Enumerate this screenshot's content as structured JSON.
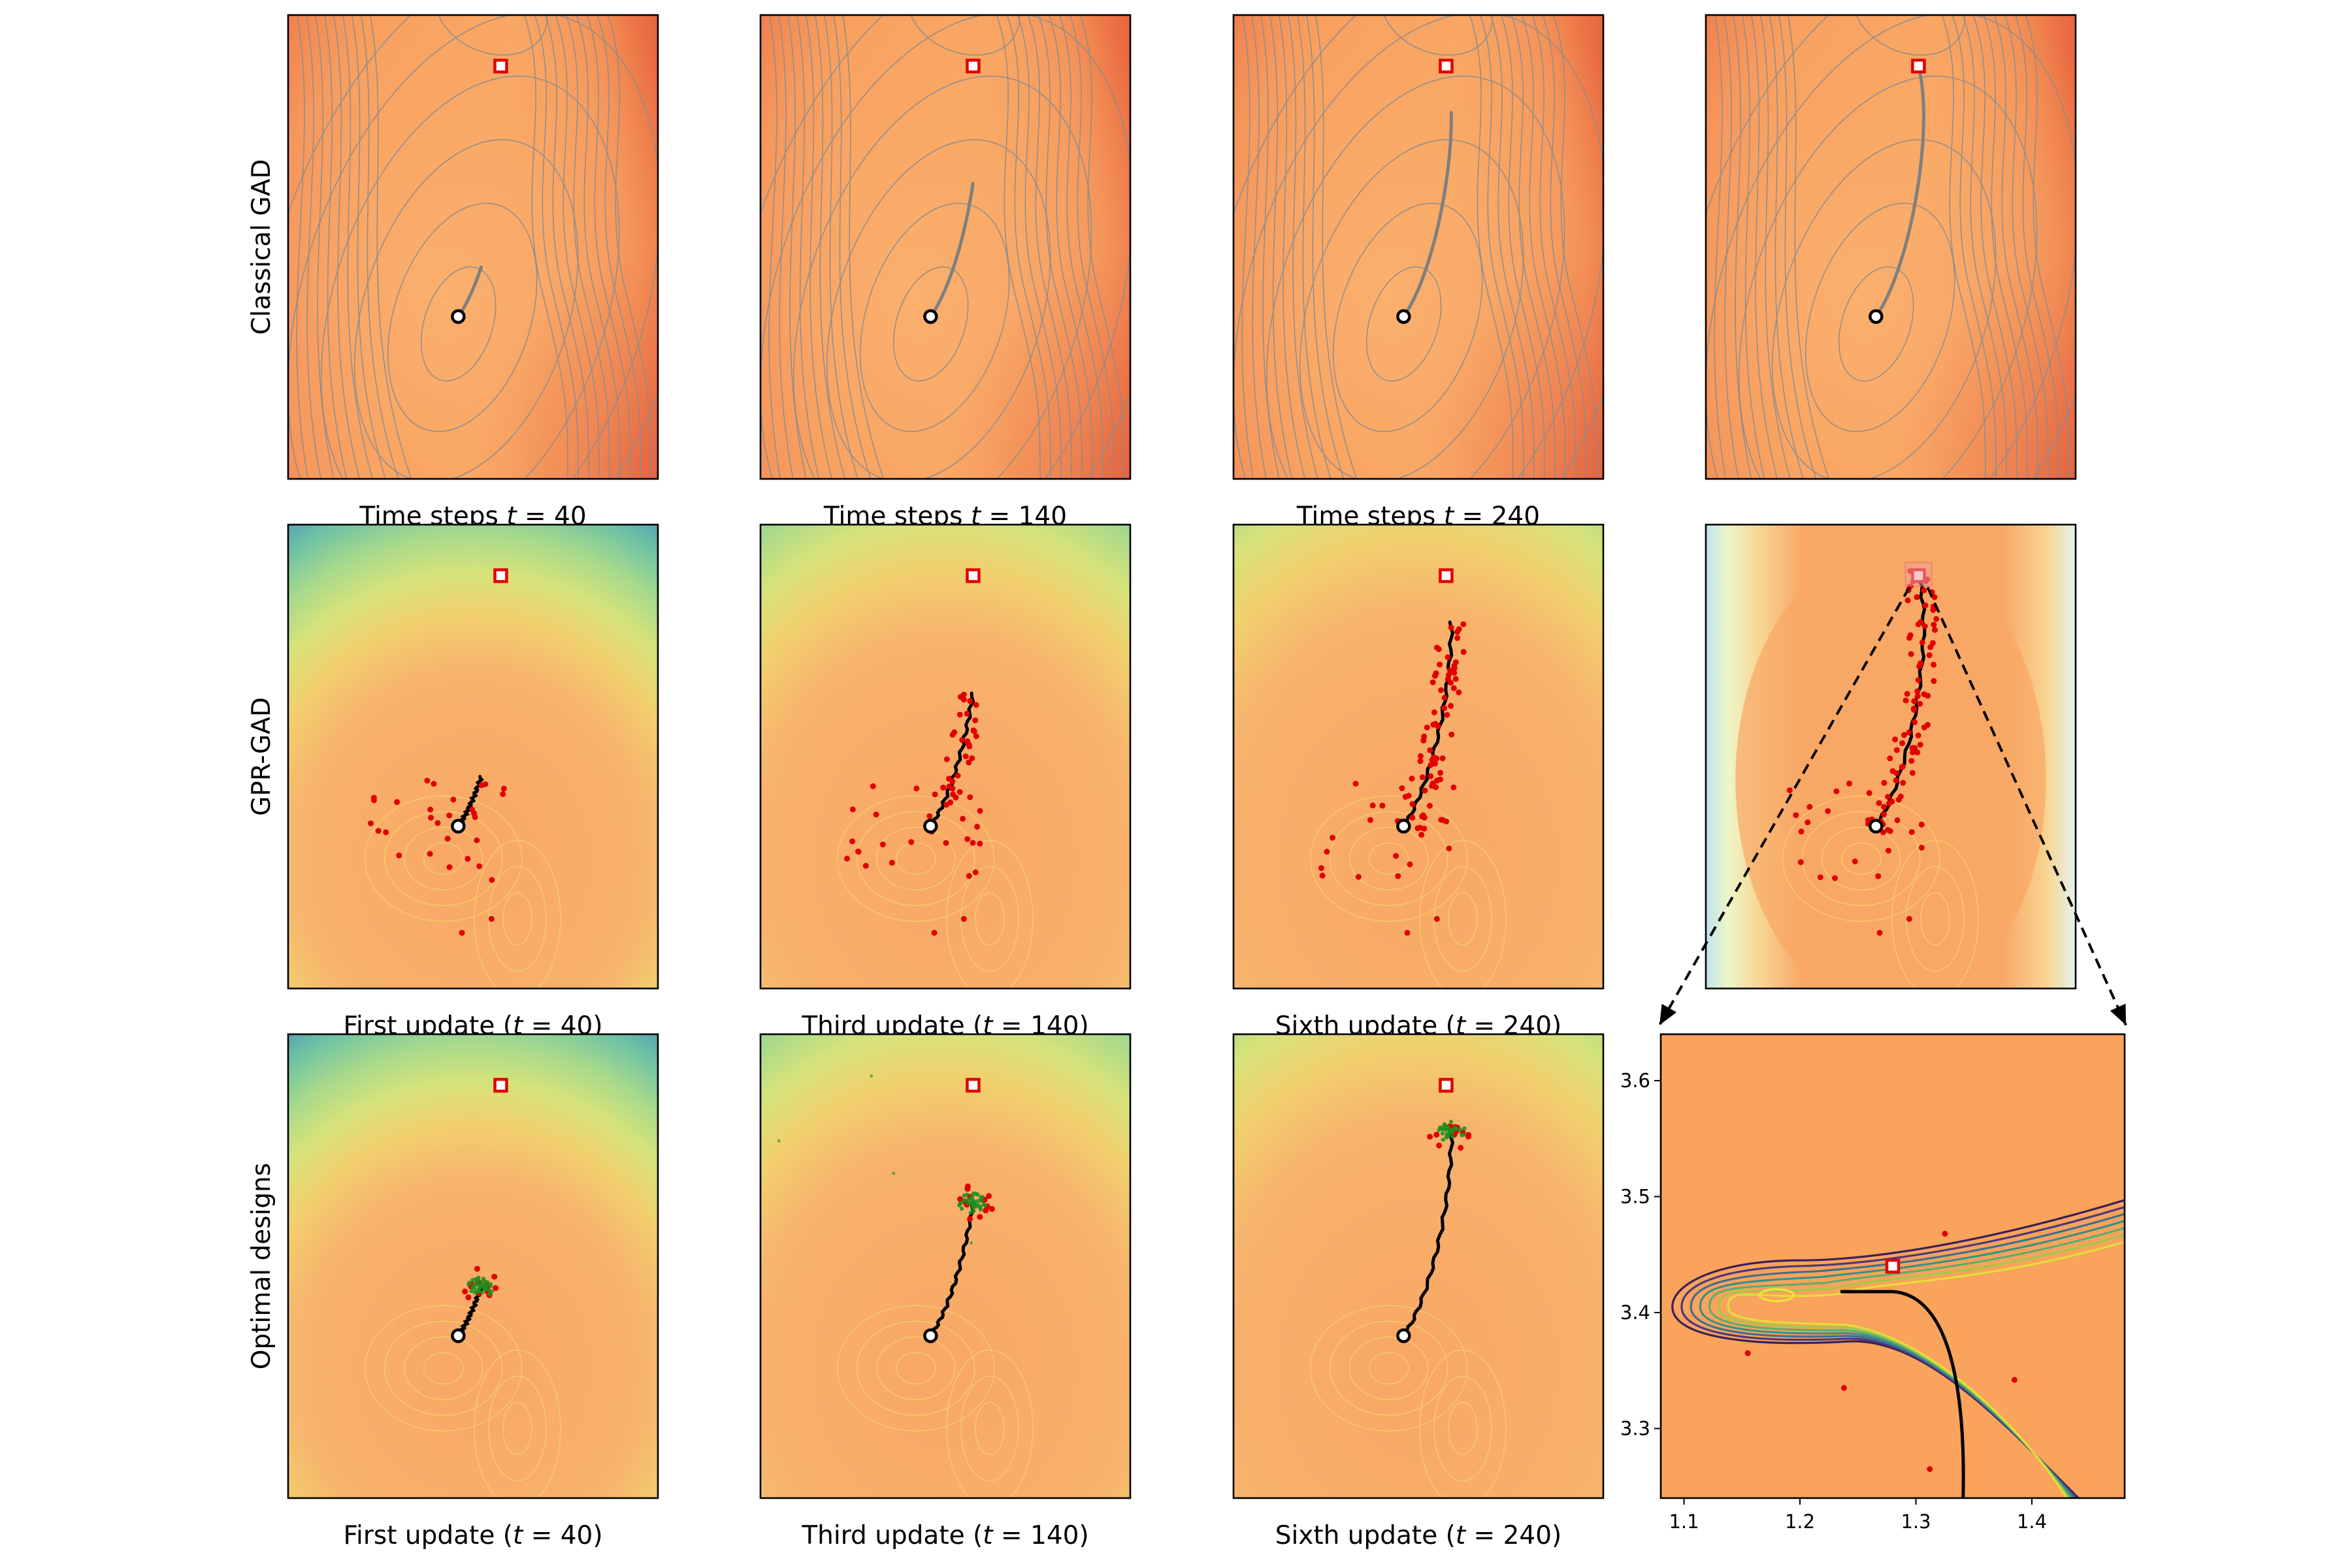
{
  "chart_data": {
    "type": "contour-grid",
    "row_labels": [
      "Classical GAD",
      "GPR-GAD",
      "Optimal designs"
    ],
    "rows": [
      {
        "name": "Classical GAD",
        "surface": "true potential",
        "panels": [
          {
            "caption": "Time steps $t = 40$",
            "caption_text": "Time steps ",
            "caption_var": "t",
            "caption_tail": " = 40",
            "progress": 0.25
          },
          {
            "caption": "Time steps $t = 140$",
            "caption_text": "Time steps ",
            "caption_var": "t",
            "caption_tail": " = 140",
            "progress": 0.55
          },
          {
            "caption": "Time steps $t = 240$",
            "caption_text": "Time steps ",
            "caption_var": "t",
            "caption_tail": " = 240",
            "progress": 0.8
          },
          {
            "caption": "",
            "caption_text": "",
            "caption_var": "",
            "caption_tail": "",
            "progress": 1.0
          }
        ]
      },
      {
        "name": "GPR-GAD",
        "surface": "GPR surrogate",
        "panels": [
          {
            "caption": "First update ($t = 40$)",
            "caption_text": "First update (",
            "caption_var": "t",
            "caption_tail": " = 40)",
            "progress": 0.25,
            "n_points": 30
          },
          {
            "caption": "Third update ($t = 140$)",
            "caption_text": "Third update (",
            "caption_var": "t",
            "caption_tail": " = 140)",
            "progress": 0.55,
            "n_points": 60
          },
          {
            "caption": "Sixth update ($t = 240$)",
            "caption_text": "Sixth update (",
            "caption_var": "t",
            "caption_tail": " = 240)",
            "progress": 0.8,
            "n_points": 90
          },
          {
            "caption": "",
            "caption_text": "",
            "caption_var": "",
            "caption_tail": "",
            "progress": 1.0,
            "n_points": 110
          }
        ]
      },
      {
        "name": "Optimal designs",
        "surface": "GPR surrogate with design points",
        "panels": [
          {
            "caption": "First update ($t = 40$)",
            "caption_text": "First update (",
            "caption_var": "t",
            "caption_tail": " = 40)",
            "progress": 0.25
          },
          {
            "caption": "Third update ($t = 140$)",
            "caption_text": "Third update (",
            "caption_var": "t",
            "caption_tail": " = 140)",
            "progress": 0.55
          },
          {
            "caption": "Sixth update ($t = 240$)",
            "caption_text": "Sixth update (",
            "caption_var": "t",
            "caption_tail": " = 240)",
            "progress": 0.8
          }
        ]
      }
    ],
    "inset": {
      "type": "contour-zoom",
      "xlim": [
        1.08,
        1.48
      ],
      "ylim": [
        3.24,
        3.64
      ],
      "xticks": [
        "1.1",
        "1.2",
        "1.3",
        "1.4"
      ],
      "xtick_values": [
        1.1,
        1.2,
        1.3,
        1.4
      ],
      "yticks": [
        "3.3",
        "3.4",
        "3.5",
        "3.6"
      ],
      "ytick_values": [
        3.3,
        3.4,
        3.5,
        3.6
      ],
      "saddle_estimate": [
        1.28,
        3.44
      ],
      "path_end": [
        1.235,
        3.418
      ],
      "red_points": [
        [
          1.155,
          3.365
        ],
        [
          1.238,
          3.335
        ],
        [
          1.325,
          3.468
        ],
        [
          1.385,
          3.342
        ],
        [
          1.312,
          3.265
        ]
      ]
    },
    "markers": {
      "start": "open black circle",
      "saddle": "red square"
    },
    "colors": {
      "path_classical": "#7f7f7f",
      "path_gpr": "#000000",
      "samples": "#e00000",
      "designs": "#1f8f1f",
      "saddle": "#e00000"
    }
  }
}
